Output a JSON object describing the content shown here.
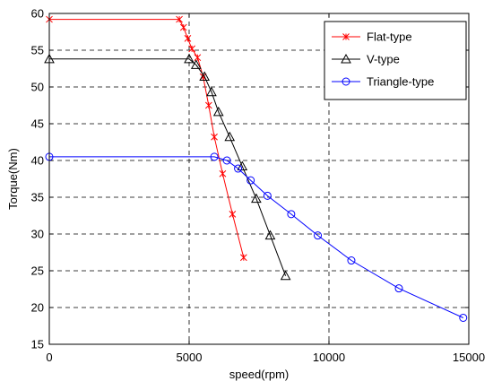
{
  "chart_data": {
    "type": "line",
    "title": "",
    "xlabel": "speed(rpm)",
    "ylabel": "Torque(Nm)",
    "xlim": [
      0,
      15000
    ],
    "ylim": [
      15,
      60
    ],
    "xticks": [
      0,
      5000,
      10000,
      15000
    ],
    "yticks": [
      15,
      20,
      25,
      30,
      35,
      40,
      45,
      50,
      55,
      60
    ],
    "xtick_labels": [
      "0",
      "5000",
      "10000",
      "15000"
    ],
    "ytick_labels": [
      "15",
      "20",
      "25",
      "30",
      "35",
      "40",
      "45",
      "50",
      "55",
      "60"
    ],
    "grid": true,
    "grid_style": "dashed",
    "legend_position": "top-right",
    "series": [
      {
        "name": "Flat-type",
        "color": "#ff0000",
        "marker": "x-star",
        "points": [
          [
            0,
            59.2
          ],
          [
            4650,
            59.2
          ],
          [
            4800,
            58.1
          ],
          [
            4950,
            56.6
          ],
          [
            5100,
            55.2
          ],
          [
            5300,
            54.0
          ],
          [
            5500,
            51.4
          ],
          [
            5700,
            47.5
          ],
          [
            5900,
            43.2
          ],
          [
            6200,
            38.2
          ],
          [
            6550,
            32.7
          ],
          [
            6950,
            26.8
          ]
        ]
      },
      {
        "name": "V-type",
        "color": "#000000",
        "marker": "triangle",
        "points": [
          [
            0,
            53.8
          ],
          [
            5000,
            53.8
          ],
          [
            5250,
            53.0
          ],
          [
            5550,
            51.4
          ],
          [
            5800,
            49.3
          ],
          [
            6050,
            46.6
          ],
          [
            6450,
            43.2
          ],
          [
            6900,
            39.2
          ],
          [
            7400,
            34.8
          ],
          [
            7900,
            29.8
          ],
          [
            8450,
            24.3
          ]
        ]
      },
      {
        "name": "Triangle-type",
        "color": "#0000ff",
        "marker": "circle",
        "points": [
          [
            0,
            40.5
          ],
          [
            5900,
            40.5
          ],
          [
            6350,
            40.0
          ],
          [
            6750,
            38.9
          ],
          [
            7200,
            37.3
          ],
          [
            7800,
            35.2
          ],
          [
            8650,
            32.7
          ],
          [
            9600,
            29.8
          ],
          [
            10800,
            26.4
          ],
          [
            12500,
            22.6
          ],
          [
            14800,
            18.6
          ]
        ]
      }
    ]
  }
}
